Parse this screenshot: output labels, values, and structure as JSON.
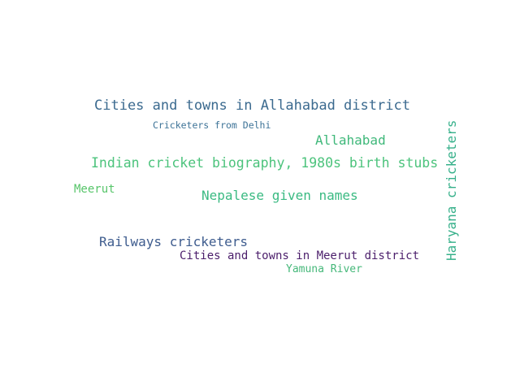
{
  "words": [
    {
      "text": "Cities and towns in Allahabad district",
      "color": "#3b6a8f"
    },
    {
      "text": "Cricketers from Delhi",
      "color": "#3d7397"
    },
    {
      "text": "Allahabad",
      "color": "#3fb87a"
    },
    {
      "text": "Indian cricket biography, 1980s birth stubs",
      "color": "#4cc37c"
    },
    {
      "text": "Meerut",
      "color": "#57c56a"
    },
    {
      "text": "Nepalese given names",
      "color": "#3aba82"
    },
    {
      "text": "Railways cricketers",
      "color": "#3e5c8e"
    },
    {
      "text": "Cities and towns in Meerut district",
      "color": "#4b1e6b"
    },
    {
      "text": "Yamuna River",
      "color": "#46b87a"
    },
    {
      "text": "Haryana cricketers",
      "color": "#36b08a"
    }
  ]
}
